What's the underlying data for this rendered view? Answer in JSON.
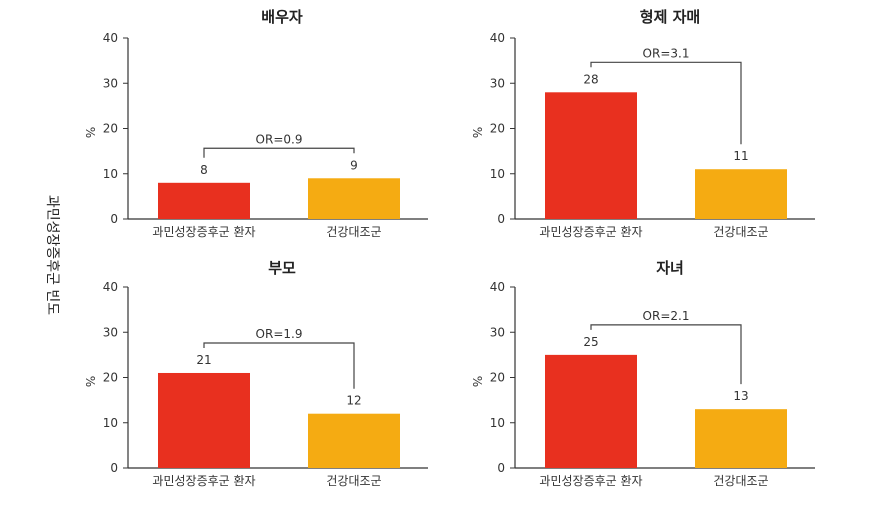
{
  "colors": {
    "patient": "#e8301f",
    "control": "#f5ab12",
    "axis": "#333333",
    "bracket": "#444444"
  },
  "global_ylabel": "과민성장증후군 빈도",
  "chart_data": [
    {
      "type": "bar",
      "title": "배우자",
      "ylabel": "%",
      "ylim": [
        0,
        40
      ],
      "yticks": [
        0,
        10,
        20,
        30,
        40
      ],
      "categories": [
        "과민성장증후군 환자",
        "건강대조군"
      ],
      "values": [
        8,
        9
      ],
      "annotation": "OR=0.9"
    },
    {
      "type": "bar",
      "title": "형제 자매",
      "ylabel": "%",
      "ylim": [
        0,
        40
      ],
      "yticks": [
        0,
        10,
        20,
        30,
        40
      ],
      "categories": [
        "과민성장증후군 환자",
        "건강대조군"
      ],
      "values": [
        28,
        11
      ],
      "annotation": "OR=3.1"
    },
    {
      "type": "bar",
      "title": "부모",
      "ylabel": "%",
      "ylim": [
        0,
        40
      ],
      "yticks": [
        0,
        10,
        20,
        30,
        40
      ],
      "categories": [
        "과민성장증후군 환자",
        "건강대조군"
      ],
      "values": [
        21,
        12
      ],
      "annotation": "OR=1.9"
    },
    {
      "type": "bar",
      "title": "자녀",
      "ylabel": "%",
      "ylim": [
        0,
        40
      ],
      "yticks": [
        0,
        10,
        20,
        30,
        40
      ],
      "categories": [
        "과민성장증후군 환자",
        "건강대조군"
      ],
      "values": [
        25,
        13
      ],
      "annotation": "OR=2.1"
    }
  ]
}
